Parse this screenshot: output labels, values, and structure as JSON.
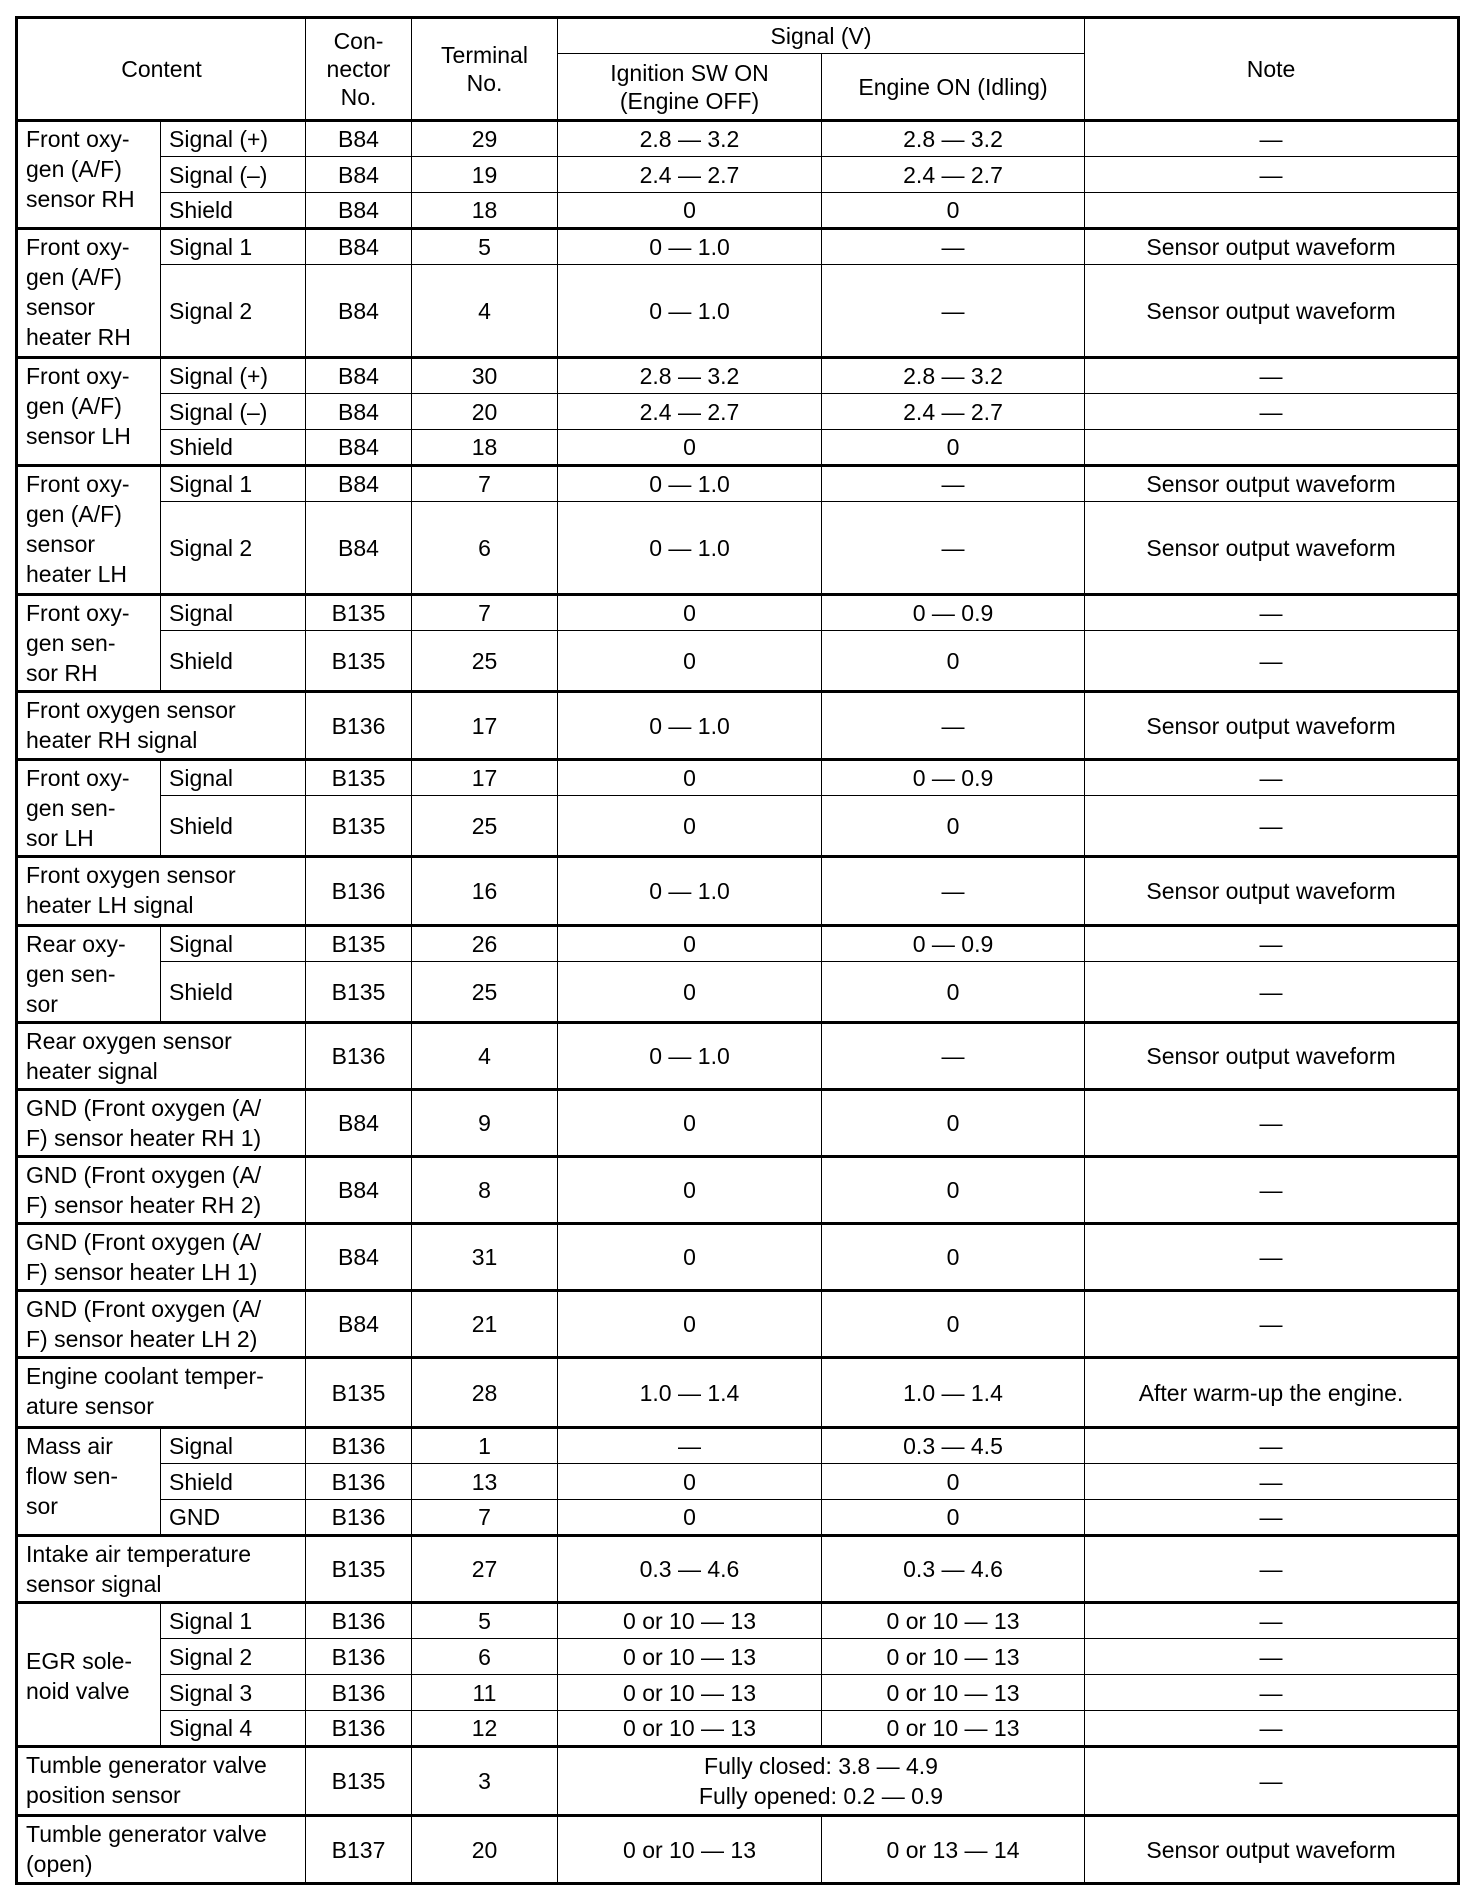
{
  "header": {
    "content": "Content",
    "connector": [
      "Con-",
      "nector",
      "No."
    ],
    "terminal": [
      "Terminal",
      "No."
    ],
    "signal": "Signal (V)",
    "ignition": [
      "Ignition SW ON",
      "(Engine OFF)"
    ],
    "engine": "Engine ON (Idling)",
    "note": "Note"
  },
  "groups": [
    {
      "content": [
        "Front oxy-",
        "gen (A/F)",
        "sensor RH"
      ],
      "rows": [
        {
          "label": "Signal (+)",
          "connector": "B84",
          "terminal": "29",
          "ign": "2.8 — 3.2",
          "eng": "2.8 — 3.2",
          "note": "—"
        },
        {
          "label": "Signal (–)",
          "connector": "B84",
          "terminal": "19",
          "ign": "2.4 — 2.7",
          "eng": "2.4 — 2.7",
          "note": "—"
        },
        {
          "label": "Shield",
          "connector": "B84",
          "terminal": "18",
          "ign": "0",
          "eng": "0",
          "note": ""
        }
      ]
    },
    {
      "content": [
        "Front oxy-",
        "gen (A/F)",
        "sensor",
        "heater RH"
      ],
      "rows": [
        {
          "label": "Signal 1",
          "connector": "B84",
          "terminal": "5",
          "ign": "0 — 1.0",
          "eng": "—",
          "note": "Sensor output waveform"
        },
        {
          "label": "Signal 2",
          "connector": "B84",
          "terminal": "4",
          "ign": "0 — 1.0",
          "eng": "—",
          "note": "Sensor output waveform"
        }
      ]
    },
    {
      "content": [
        "Front oxy-",
        "gen (A/F)",
        "sensor LH"
      ],
      "rows": [
        {
          "label": "Signal (+)",
          "connector": "B84",
          "terminal": "30",
          "ign": "2.8 — 3.2",
          "eng": "2.8 — 3.2",
          "note": "—"
        },
        {
          "label": "Signal (–)",
          "connector": "B84",
          "terminal": "20",
          "ign": "2.4 — 2.7",
          "eng": "2.4 — 2.7",
          "note": "—"
        },
        {
          "label": "Shield",
          "connector": "B84",
          "terminal": "18",
          "ign": "0",
          "eng": "0",
          "note": ""
        }
      ]
    },
    {
      "content": [
        "Front oxy-",
        "gen (A/F)",
        "sensor",
        "heater LH"
      ],
      "rows": [
        {
          "label": "Signal 1",
          "connector": "B84",
          "terminal": "7",
          "ign": "0 — 1.0",
          "eng": "—",
          "note": "Sensor output waveform"
        },
        {
          "label": "Signal 2",
          "connector": "B84",
          "terminal": "6",
          "ign": "0 — 1.0",
          "eng": "—",
          "note": "Sensor output waveform"
        }
      ]
    },
    {
      "content": [
        "Front oxy-",
        "gen sen-",
        "sor RH"
      ],
      "rows": [
        {
          "label": "Signal",
          "connector": "B135",
          "terminal": "7",
          "ign": "0",
          "eng": "0 — 0.9",
          "note": "—"
        },
        {
          "label": "Shield",
          "connector": "B135",
          "terminal": "25",
          "ign": "0",
          "eng": "0",
          "note": "—"
        }
      ]
    },
    {
      "content": [
        "Front oxygen sensor",
        "heater RH signal"
      ],
      "rows": [
        {
          "label": null,
          "connector": "B136",
          "terminal": "17",
          "ign": "0 — 1.0",
          "eng": "—",
          "note": "Sensor output waveform"
        }
      ]
    },
    {
      "content": [
        "Front oxy-",
        "gen sen-",
        "sor LH"
      ],
      "rows": [
        {
          "label": "Signal",
          "connector": "B135",
          "terminal": "17",
          "ign": "0",
          "eng": "0 — 0.9",
          "note": "—"
        },
        {
          "label": "Shield",
          "connector": "B135",
          "terminal": "25",
          "ign": "0",
          "eng": "0",
          "note": "—"
        }
      ]
    },
    {
      "content": [
        "Front oxygen sensor",
        "heater LH signal"
      ],
      "rows": [
        {
          "label": null,
          "connector": "B136",
          "terminal": "16",
          "ign": "0 — 1.0",
          "eng": "—",
          "note": "Sensor output waveform"
        }
      ]
    },
    {
      "content": [
        "Rear oxy-",
        "gen sen-",
        "sor"
      ],
      "rows": [
        {
          "label": "Signal",
          "connector": "B135",
          "terminal": "26",
          "ign": "0",
          "eng": "0 — 0.9",
          "note": "—"
        },
        {
          "label": "Shield",
          "connector": "B135",
          "terminal": "25",
          "ign": "0",
          "eng": "0",
          "note": "—"
        }
      ]
    },
    {
      "content": [
        "Rear oxygen sensor",
        "heater signal"
      ],
      "rows": [
        {
          "label": null,
          "connector": "B136",
          "terminal": "4",
          "ign": "0 — 1.0",
          "eng": "—",
          "note": "Sensor output waveform"
        }
      ]
    },
    {
      "content": [
        "GND (Front oxygen (A/",
        "F) sensor heater RH 1)"
      ],
      "rows": [
        {
          "label": null,
          "connector": "B84",
          "terminal": "9",
          "ign": "0",
          "eng": "0",
          "note": "—"
        }
      ]
    },
    {
      "content": [
        "GND (Front oxygen (A/",
        "F) sensor heater RH 2)"
      ],
      "rows": [
        {
          "label": null,
          "connector": "B84",
          "terminal": "8",
          "ign": "0",
          "eng": "0",
          "note": "—"
        }
      ]
    },
    {
      "content": [
        "GND (Front oxygen (A/",
        "F) sensor heater LH 1)"
      ],
      "rows": [
        {
          "label": null,
          "connector": "B84",
          "terminal": "31",
          "ign": "0",
          "eng": "0",
          "note": "—"
        }
      ]
    },
    {
      "content": [
        "GND (Front oxygen (A/",
        "F) sensor heater LH 2)"
      ],
      "rows": [
        {
          "label": null,
          "connector": "B84",
          "terminal": "21",
          "ign": "0",
          "eng": "0",
          "note": "—"
        }
      ]
    },
    {
      "content": [
        "Engine coolant temper-",
        "ature sensor"
      ],
      "rows": [
        {
          "label": null,
          "connector": "B135",
          "terminal": "28",
          "ign": "1.0 — 1.4",
          "eng": "1.0 — 1.4",
          "note": "After warm-up the engine."
        }
      ]
    },
    {
      "content": [
        "Mass air",
        "flow sen-",
        "sor"
      ],
      "rows": [
        {
          "label": "Signal",
          "connector": "B136",
          "terminal": "1",
          "ign": "—",
          "eng": "0.3 — 4.5",
          "note": "—"
        },
        {
          "label": "Shield",
          "connector": "B136",
          "terminal": "13",
          "ign": "0",
          "eng": "0",
          "note": "—"
        },
        {
          "label": "GND",
          "connector": "B136",
          "terminal": "7",
          "ign": "0",
          "eng": "0",
          "note": "—"
        }
      ]
    },
    {
      "content": [
        "Intake air temperature",
        "sensor signal"
      ],
      "rows": [
        {
          "label": null,
          "connector": "B135",
          "terminal": "27",
          "ign": "0.3 — 4.6",
          "eng": "0.3 — 4.6",
          "note": "—"
        }
      ]
    },
    {
      "content": [
        "EGR sole-",
        "noid valve"
      ],
      "middle": true,
      "rows": [
        {
          "label": "Signal 1",
          "connector": "B136",
          "terminal": "5",
          "ign": "0 or 10 — 13",
          "eng": "0 or 10 — 13",
          "note": "—"
        },
        {
          "label": "Signal 2",
          "connector": "B136",
          "terminal": "6",
          "ign": "0 or 10 — 13",
          "eng": "0 or 10 — 13",
          "note": "—"
        },
        {
          "label": "Signal 3",
          "connector": "B136",
          "terminal": "11",
          "ign": "0 or 10 — 13",
          "eng": "0 or 10 — 13",
          "note": "—"
        },
        {
          "label": "Signal 4",
          "connector": "B136",
          "terminal": "12",
          "ign": "0 or 10 — 13",
          "eng": "0 or 10 — 13",
          "note": "—"
        }
      ]
    },
    {
      "content": [
        "Tumble generator valve",
        "position sensor"
      ],
      "rows": [
        {
          "label": null,
          "connector": "B135",
          "terminal": "3",
          "merged": [
            "Fully closed: 3.8 — 4.9",
            "Fully opened: 0.2 — 0.9"
          ],
          "note": "—"
        }
      ]
    },
    {
      "content": [
        "Tumble generator valve",
        "(open)"
      ],
      "rows": [
        {
          "label": null,
          "connector": "B137",
          "terminal": "20",
          "ign": "0 or 10 — 13",
          "eng": "0 or 13 — 14",
          "note": "Sensor output waveform"
        }
      ]
    }
  ]
}
